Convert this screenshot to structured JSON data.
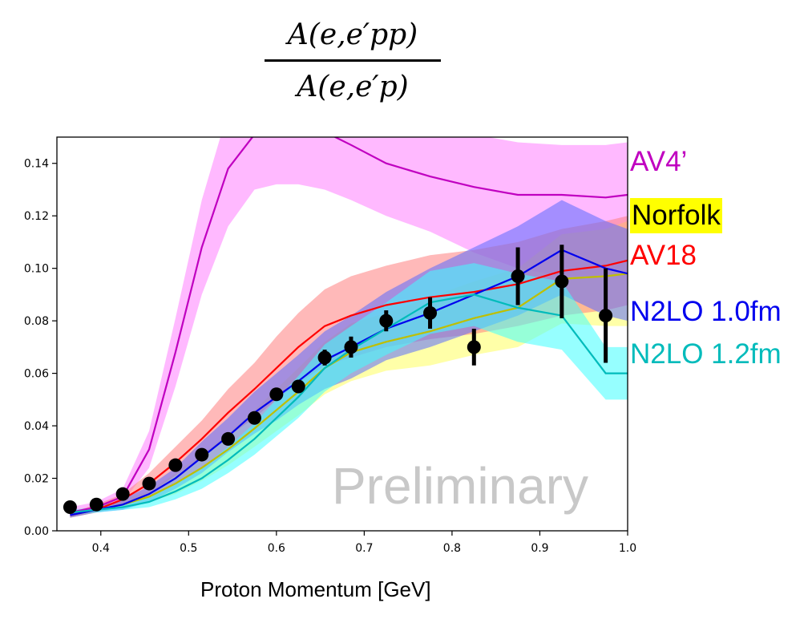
{
  "chart_data": {
    "type": "line",
    "title_numerator": "A(e,e′pp)",
    "title_denominator": "A(e,e′p)",
    "xlabel": "Proton Momentum [GeV]",
    "ylabel": "",
    "xlim": [
      0.35,
      1.0
    ],
    "ylim": [
      0.0,
      0.15
    ],
    "xticks": [
      "0.4",
      "0.5",
      "0.6",
      "0.7",
      "0.8",
      "0.9",
      "1.0"
    ],
    "yticks": [
      "0.00",
      "0.02",
      "0.04",
      "0.06",
      "0.08",
      "0.10",
      "0.12",
      "0.14"
    ],
    "watermark": "Preliminary",
    "grid": false,
    "x": [
      0.365,
      0.395,
      0.425,
      0.455,
      0.485,
      0.515,
      0.545,
      0.575,
      0.6,
      0.625,
      0.655,
      0.685,
      0.725,
      0.775,
      0.825,
      0.875,
      0.925,
      0.975,
      1.0
    ],
    "series": [
      {
        "name": "AV4’",
        "color": "#c000c0",
        "band_color": "#ff80ff",
        "values": [
          0.007,
          0.009,
          0.013,
          0.031,
          0.068,
          0.108,
          0.138,
          0.151,
          0.156,
          0.156,
          0.152,
          0.147,
          0.14,
          0.135,
          0.131,
          0.128,
          0.128,
          0.127,
          0.128
        ],
        "band_lower": [
          0.006,
          0.008,
          0.011,
          0.024,
          0.055,
          0.09,
          0.116,
          0.13,
          0.132,
          0.132,
          0.13,
          0.126,
          0.12,
          0.114,
          0.106,
          0.1,
          0.097,
          0.097,
          0.097
        ],
        "band_upper": [
          0.009,
          0.011,
          0.016,
          0.038,
          0.081,
          0.126,
          0.16,
          0.16,
          0.16,
          0.16,
          0.16,
          0.16,
          0.16,
          0.153,
          0.151,
          0.148,
          0.147,
          0.147,
          0.148
        ]
      },
      {
        "name": "Norfolk",
        "color": "#bfbf00",
        "band_color": "#ffff60",
        "values": [
          0.006,
          0.008,
          0.01,
          0.013,
          0.018,
          0.024,
          0.031,
          0.039,
          0.046,
          0.053,
          0.062,
          0.068,
          0.072,
          0.076,
          0.081,
          0.085,
          0.096,
          0.097,
          0.098
        ],
        "band_lower": [
          0.005,
          0.007,
          0.009,
          0.011,
          0.014,
          0.019,
          0.025,
          0.032,
          0.038,
          0.044,
          0.052,
          0.057,
          0.061,
          0.063,
          0.067,
          0.07,
          0.079,
          0.078,
          0.078
        ],
        "band_upper": [
          0.007,
          0.009,
          0.012,
          0.015,
          0.022,
          0.029,
          0.037,
          0.046,
          0.054,
          0.062,
          0.072,
          0.079,
          0.083,
          0.089,
          0.095,
          0.1,
          0.113,
          0.115,
          0.118
        ]
      },
      {
        "name": "AV18",
        "color": "#ff0000",
        "band_color": "#ff8080",
        "values": [
          0.006,
          0.008,
          0.012,
          0.018,
          0.026,
          0.035,
          0.045,
          0.054,
          0.062,
          0.07,
          0.078,
          0.082,
          0.086,
          0.089,
          0.091,
          0.094,
          0.099,
          0.101,
          0.103
        ],
        "band_lower": [
          0.005,
          0.007,
          0.01,
          0.014,
          0.021,
          0.028,
          0.036,
          0.043,
          0.05,
          0.056,
          0.063,
          0.066,
          0.07,
          0.073,
          0.075,
          0.078,
          0.082,
          0.084,
          0.086
        ],
        "band_upper": [
          0.007,
          0.01,
          0.014,
          0.022,
          0.032,
          0.042,
          0.054,
          0.064,
          0.074,
          0.083,
          0.092,
          0.097,
          0.101,
          0.105,
          0.107,
          0.11,
          0.115,
          0.118,
          0.12
        ]
      },
      {
        "name": "N2LO 1.0fm",
        "color": "#0000ee",
        "band_color": "#5a6cff",
        "values": [
          0.006,
          0.008,
          0.01,
          0.014,
          0.02,
          0.028,
          0.036,
          0.045,
          0.051,
          0.057,
          0.065,
          0.07,
          0.077,
          0.083,
          0.09,
          0.097,
          0.107,
          0.1,
          0.098
        ],
        "band_lower": [
          0.005,
          0.007,
          0.008,
          0.011,
          0.016,
          0.022,
          0.03,
          0.037,
          0.042,
          0.048,
          0.054,
          0.058,
          0.065,
          0.07,
          0.076,
          0.082,
          0.09,
          0.082,
          0.08
        ],
        "band_upper": [
          0.007,
          0.009,
          0.012,
          0.017,
          0.024,
          0.034,
          0.043,
          0.053,
          0.06,
          0.067,
          0.076,
          0.082,
          0.091,
          0.1,
          0.108,
          0.116,
          0.126,
          0.118,
          0.115
        ]
      },
      {
        "name": "N2LO 1.2fm",
        "color": "#00bbbb",
        "band_color": "#40ffff",
        "values": [
          0.007,
          0.008,
          0.009,
          0.011,
          0.015,
          0.02,
          0.027,
          0.035,
          0.043,
          0.051,
          0.062,
          0.069,
          0.077,
          0.087,
          0.09,
          0.085,
          0.082,
          0.06,
          0.06
        ],
        "band_lower": [
          0.006,
          0.007,
          0.008,
          0.009,
          0.012,
          0.016,
          0.022,
          0.029,
          0.036,
          0.043,
          0.053,
          0.06,
          0.067,
          0.075,
          0.078,
          0.072,
          0.069,
          0.05,
          0.05
        ],
        "band_upper": [
          0.008,
          0.009,
          0.01,
          0.013,
          0.018,
          0.024,
          0.032,
          0.041,
          0.05,
          0.059,
          0.071,
          0.078,
          0.087,
          0.099,
          0.102,
          0.098,
          0.095,
          0.07,
          0.07
        ]
      }
    ],
    "data_points": {
      "x": [
        0.365,
        0.395,
        0.425,
        0.455,
        0.485,
        0.515,
        0.545,
        0.575,
        0.6,
        0.625,
        0.655,
        0.685,
        0.725,
        0.775,
        0.825,
        0.875,
        0.925,
        0.975
      ],
      "y": [
        0.009,
        0.01,
        0.014,
        0.018,
        0.025,
        0.029,
        0.035,
        0.043,
        0.052,
        0.055,
        0.066,
        0.07,
        0.08,
        0.083,
        0.07,
        0.097,
        0.095,
        0.082
      ],
      "err": [
        0.001,
        0.001,
        0.001,
        0.001,
        0.001,
        0.001,
        0.001,
        0.001,
        0.002,
        0.002,
        0.003,
        0.004,
        0.004,
        0.006,
        0.007,
        0.011,
        0.014,
        0.018
      ],
      "color": "#000000"
    }
  }
}
